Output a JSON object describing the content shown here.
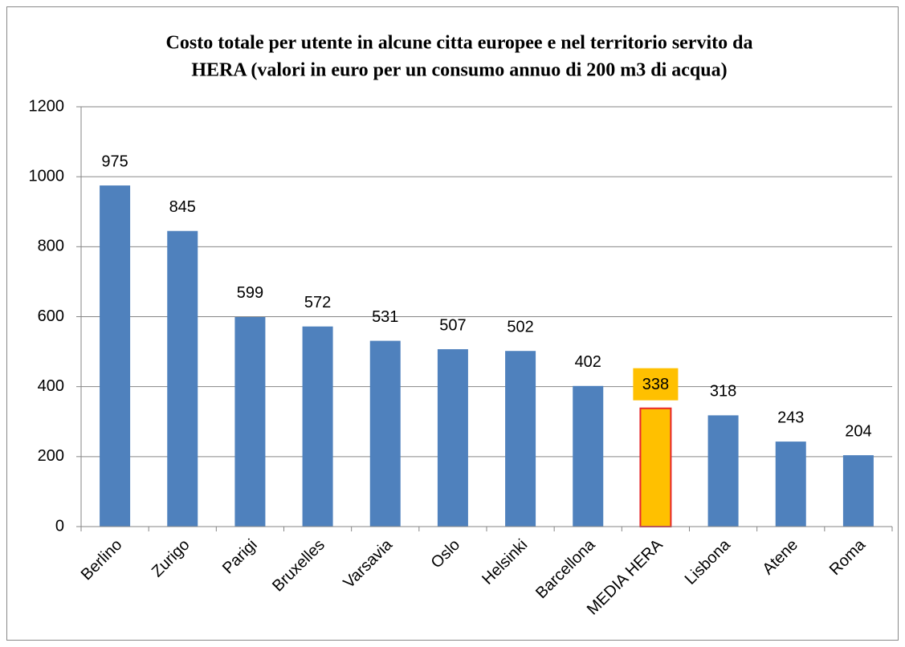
{
  "chart_data": {
    "type": "bar",
    "title": [
      "Costo totale per utente in alcune citta europee e nel territorio servito da",
      "HERA (valori in euro per un consumo annuo di 200 m3 di acqua)"
    ],
    "categories": [
      "Berlino",
      "Zurigo",
      "Parigi",
      "Bruxelles",
      "Varsavia",
      "Oslo",
      "Helsinki",
      "Barcellona",
      "MEDIA HERA",
      "Lisbona",
      "Atene",
      "Roma"
    ],
    "values": [
      975,
      845,
      599,
      572,
      531,
      507,
      502,
      402,
      338,
      318,
      243,
      204
    ],
    "colors": [
      "#4f81bd",
      "#4f81bd",
      "#4f81bd",
      "#4f81bd",
      "#4f81bd",
      "#4f81bd",
      "#4f81bd",
      "#4f81bd",
      "#ffc000",
      "#4f81bd",
      "#4f81bd",
      "#4f81bd"
    ],
    "edge_colors": [
      null,
      null,
      null,
      null,
      null,
      null,
      null,
      null,
      "#e8262a",
      null,
      null,
      null
    ],
    "ylim": [
      0,
      1200
    ],
    "yticks": [
      0,
      200,
      400,
      600,
      800,
      1000,
      1200
    ],
    "grid": true
  }
}
